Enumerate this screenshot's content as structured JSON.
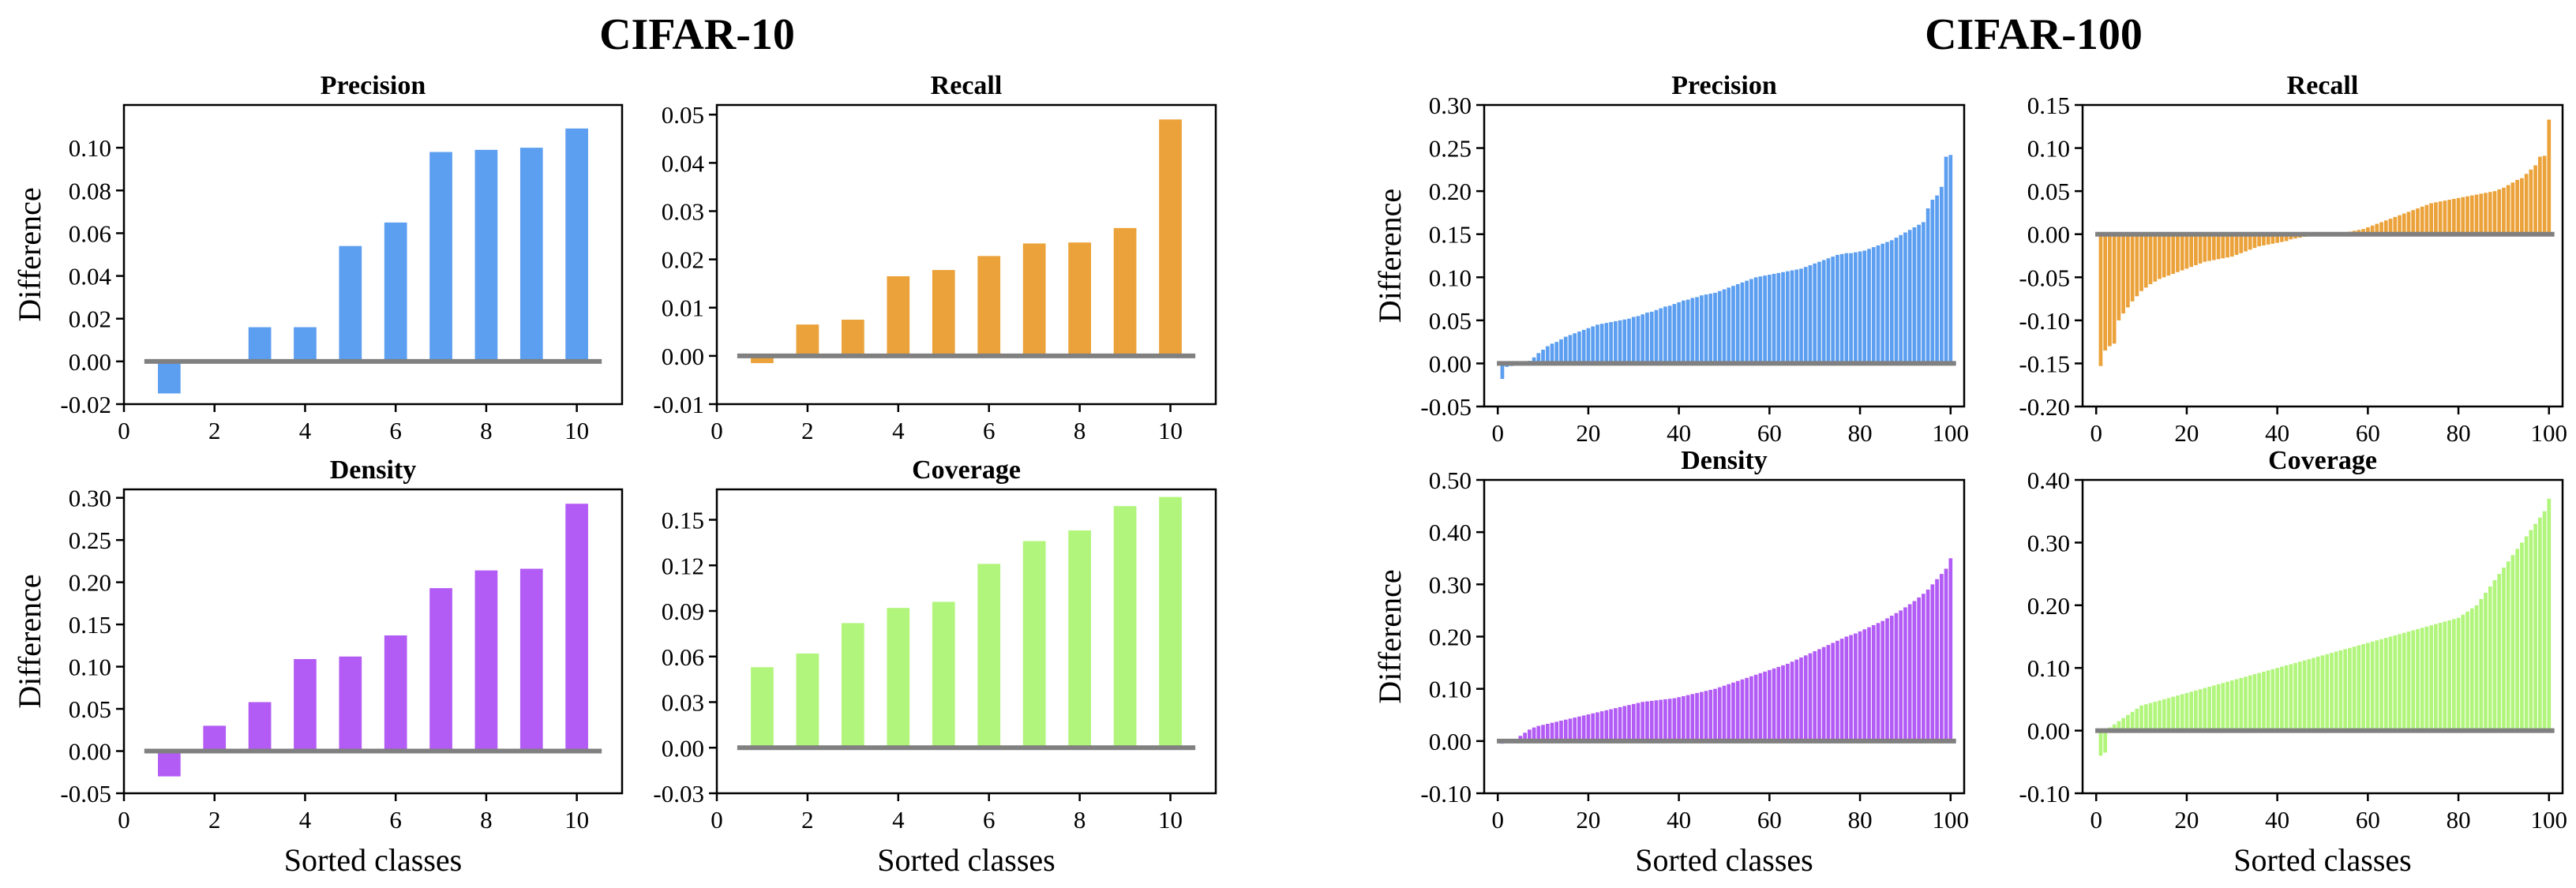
{
  "figure": {
    "group_titles": [
      "CIFAR-10",
      "CIFAR-100"
    ],
    "baseline_color": "#808080"
  },
  "chart_data": [
    {
      "type": "bar",
      "group": "CIFAR-10",
      "title": "Precision",
      "xlabel": "",
      "ylabel": "Difference",
      "color": "#5C9EF0",
      "xlim": [
        0,
        11
      ],
      "ylim": [
        -0.02,
        0.12
      ],
      "xticks": [
        "0",
        "2",
        "4",
        "6",
        "8",
        "10"
      ],
      "yticks": [
        "-0.02",
        "0.00",
        "0.02",
        "0.04",
        "0.06",
        "0.08",
        "0.10"
      ],
      "x": [
        1,
        2,
        3,
        4,
        5,
        6,
        7,
        8,
        9,
        10
      ],
      "values": [
        -0.015,
        0.001,
        0.016,
        0.016,
        0.054,
        0.065,
        0.098,
        0.099,
        0.1,
        0.109
      ]
    },
    {
      "type": "bar",
      "group": "CIFAR-10",
      "title": "Recall",
      "xlabel": "",
      "ylabel": "",
      "color": "#EBA23A",
      "xlim": [
        0,
        11
      ],
      "ylim": [
        -0.01,
        0.052
      ],
      "xticks": [
        "0",
        "2",
        "4",
        "6",
        "8",
        "10"
      ],
      "yticks": [
        "-0.01",
        "0.00",
        "0.01",
        "0.02",
        "0.03",
        "0.04",
        "0.05"
      ],
      "x": [
        1,
        2,
        3,
        4,
        5,
        6,
        7,
        8,
        9,
        10
      ],
      "values": [
        -0.0015,
        0.0065,
        0.0075,
        0.0165,
        0.0178,
        0.0207,
        0.0233,
        0.0235,
        0.0265,
        0.049
      ]
    },
    {
      "type": "bar",
      "group": "CIFAR-10",
      "title": "Density",
      "xlabel": "Sorted classes",
      "ylabel": "Difference",
      "color": "#B25CF5",
      "xlim": [
        0,
        11
      ],
      "ylim": [
        -0.05,
        0.31
      ],
      "xticks": [
        "0",
        "2",
        "4",
        "6",
        "8",
        "10"
      ],
      "yticks": [
        "-0.05",
        "0.00",
        "0.05",
        "0.10",
        "0.15",
        "0.20",
        "0.25",
        "0.30"
      ],
      "x": [
        1,
        2,
        3,
        4,
        5,
        6,
        7,
        8,
        9,
        10
      ],
      "values": [
        -0.03,
        0.03,
        0.058,
        0.109,
        0.112,
        0.137,
        0.193,
        0.214,
        0.216,
        0.293
      ]
    },
    {
      "type": "bar",
      "group": "CIFAR-10",
      "title": "Coverage",
      "xlabel": "Sorted classes",
      "ylabel": "",
      "color": "#B2F57C",
      "xlim": [
        0,
        11
      ],
      "ylim": [
        -0.03,
        0.17
      ],
      "xticks": [
        "0",
        "2",
        "4",
        "6",
        "8",
        "10"
      ],
      "yticks": [
        "-0.03",
        "0.00",
        "0.03",
        "0.06",
        "0.09",
        "0.12",
        "0.15"
      ],
      "x": [
        1,
        2,
        3,
        4,
        5,
        6,
        7,
        8,
        9,
        10
      ],
      "values": [
        0.053,
        0.062,
        0.082,
        0.092,
        0.096,
        0.121,
        0.136,
        0.143,
        0.159,
        0.165
      ]
    },
    {
      "type": "bar",
      "group": "CIFAR-100",
      "title": "Precision",
      "xlabel": "",
      "ylabel": "Difference",
      "color": "#5C9EF0",
      "xlim": [
        -3,
        103
      ],
      "ylim": [
        -0.05,
        0.3
      ],
      "xticks": [
        "0",
        "20",
        "40",
        "60",
        "80",
        "100"
      ],
      "yticks": [
        "-0.05",
        "0.00",
        "0.05",
        "0.10",
        "0.15",
        "0.20",
        "0.25",
        "0.30"
      ],
      "x_start": 1,
      "values": [
        -0.018,
        -0.004,
        -0.003,
        -0.002,
        0.0,
        0.001,
        0.003,
        0.007,
        0.012,
        0.016,
        0.02,
        0.023,
        0.025,
        0.028,
        0.031,
        0.033,
        0.035,
        0.037,
        0.039,
        0.041,
        0.043,
        0.045,
        0.046,
        0.047,
        0.048,
        0.049,
        0.05,
        0.051,
        0.052,
        0.054,
        0.055,
        0.057,
        0.059,
        0.06,
        0.062,
        0.064,
        0.066,
        0.067,
        0.069,
        0.071,
        0.073,
        0.074,
        0.076,
        0.077,
        0.079,
        0.08,
        0.081,
        0.082,
        0.084,
        0.086,
        0.088,
        0.09,
        0.092,
        0.094,
        0.096,
        0.098,
        0.1,
        0.101,
        0.102,
        0.103,
        0.104,
        0.105,
        0.106,
        0.107,
        0.108,
        0.109,
        0.11,
        0.112,
        0.114,
        0.116,
        0.118,
        0.12,
        0.122,
        0.124,
        0.126,
        0.127,
        0.128,
        0.128,
        0.129,
        0.13,
        0.131,
        0.133,
        0.135,
        0.137,
        0.139,
        0.141,
        0.143,
        0.146,
        0.149,
        0.152,
        0.155,
        0.158,
        0.161,
        0.164,
        0.18,
        0.19,
        0.195,
        0.205,
        0.24,
        0.242
      ]
    },
    {
      "type": "bar",
      "group": "CIFAR-100",
      "title": "Recall",
      "xlabel": "",
      "ylabel": "",
      "color": "#EBA23A",
      "xlim": [
        -3,
        103
      ],
      "ylim": [
        -0.2,
        0.15
      ],
      "xticks": [
        "0",
        "20",
        "40",
        "60",
        "80",
        "100"
      ],
      "yticks": [
        "-0.20",
        "-0.15",
        "-0.10",
        "-0.05",
        "0.00",
        "0.05",
        "0.10",
        "0.15"
      ],
      "x_start": 1,
      "values": [
        -0.153,
        -0.135,
        -0.13,
        -0.127,
        -0.1,
        -0.092,
        -0.085,
        -0.078,
        -0.072,
        -0.066,
        -0.062,
        -0.058,
        -0.055,
        -0.052,
        -0.05,
        -0.048,
        -0.046,
        -0.044,
        -0.042,
        -0.04,
        -0.038,
        -0.036,
        -0.034,
        -0.032,
        -0.031,
        -0.03,
        -0.029,
        -0.028,
        -0.027,
        -0.026,
        -0.024,
        -0.022,
        -0.02,
        -0.018,
        -0.016,
        -0.014,
        -0.013,
        -0.012,
        -0.011,
        -0.01,
        -0.009,
        -0.008,
        -0.006,
        -0.005,
        -0.004,
        -0.003,
        -0.002,
        -0.002,
        -0.001,
        -0.001,
        0.0,
        0.0,
        0.001,
        0.001,
        0.002,
        0.003,
        0.004,
        0.005,
        0.006,
        0.008,
        0.01,
        0.012,
        0.014,
        0.016,
        0.018,
        0.02,
        0.022,
        0.024,
        0.026,
        0.028,
        0.03,
        0.032,
        0.034,
        0.036,
        0.037,
        0.038,
        0.039,
        0.04,
        0.041,
        0.042,
        0.043,
        0.044,
        0.045,
        0.046,
        0.047,
        0.048,
        0.049,
        0.05,
        0.052,
        0.054,
        0.057,
        0.06,
        0.063,
        0.065,
        0.07,
        0.075,
        0.08,
        0.09,
        0.091,
        0.133
      ]
    },
    {
      "type": "bar",
      "group": "CIFAR-100",
      "title": "Density",
      "xlabel": "Sorted classes",
      "ylabel": "Difference",
      "color": "#B25CF5",
      "xlim": [
        -3,
        103
      ],
      "ylim": [
        -0.1,
        0.5
      ],
      "xticks": [
        "0",
        "20",
        "40",
        "60",
        "80",
        "100"
      ],
      "yticks": [
        "-0.10",
        "0.00",
        "0.10",
        "0.20",
        "0.30",
        "0.40",
        "0.50"
      ],
      "x_start": 1,
      "values": [
        -0.005,
        0.0,
        0.002,
        0.004,
        0.01,
        0.016,
        0.022,
        0.026,
        0.029,
        0.031,
        0.033,
        0.035,
        0.037,
        0.039,
        0.041,
        0.043,
        0.045,
        0.047,
        0.049,
        0.051,
        0.053,
        0.055,
        0.057,
        0.059,
        0.061,
        0.063,
        0.065,
        0.067,
        0.069,
        0.071,
        0.073,
        0.075,
        0.076,
        0.077,
        0.078,
        0.079,
        0.08,
        0.081,
        0.082,
        0.084,
        0.086,
        0.088,
        0.09,
        0.092,
        0.094,
        0.096,
        0.098,
        0.1,
        0.103,
        0.106,
        0.109,
        0.112,
        0.115,
        0.118,
        0.121,
        0.124,
        0.127,
        0.13,
        0.133,
        0.136,
        0.139,
        0.142,
        0.145,
        0.148,
        0.152,
        0.156,
        0.16,
        0.164,
        0.168,
        0.172,
        0.176,
        0.18,
        0.184,
        0.188,
        0.192,
        0.196,
        0.2,
        0.203,
        0.206,
        0.21,
        0.214,
        0.218,
        0.222,
        0.226,
        0.23,
        0.235,
        0.24,
        0.245,
        0.25,
        0.256,
        0.262,
        0.268,
        0.275,
        0.282,
        0.29,
        0.3,
        0.31,
        0.32,
        0.33,
        0.35
      ]
    },
    {
      "type": "bar",
      "group": "CIFAR-100",
      "title": "Coverage",
      "xlabel": "Sorted classes",
      "ylabel": "",
      "color": "#B2F57C",
      "xlim": [
        -3,
        103
      ],
      "ylim": [
        -0.1,
        0.4
      ],
      "xticks": [
        "0",
        "20",
        "40",
        "60",
        "80",
        "100"
      ],
      "yticks": [
        "-0.10",
        "0.00",
        "0.10",
        "0.20",
        "0.30",
        "0.40"
      ],
      "x_start": 1,
      "values": [
        -0.04,
        -0.035,
        0.005,
        0.01,
        0.015,
        0.02,
        0.025,
        0.03,
        0.035,
        0.04,
        0.042,
        0.044,
        0.046,
        0.048,
        0.05,
        0.052,
        0.054,
        0.056,
        0.058,
        0.06,
        0.062,
        0.064,
        0.066,
        0.068,
        0.07,
        0.072,
        0.074,
        0.076,
        0.078,
        0.08,
        0.082,
        0.084,
        0.086,
        0.088,
        0.09,
        0.092,
        0.094,
        0.096,
        0.098,
        0.1,
        0.102,
        0.104,
        0.106,
        0.108,
        0.11,
        0.112,
        0.114,
        0.116,
        0.118,
        0.12,
        0.122,
        0.124,
        0.126,
        0.128,
        0.13,
        0.132,
        0.134,
        0.136,
        0.138,
        0.14,
        0.142,
        0.144,
        0.146,
        0.148,
        0.15,
        0.152,
        0.154,
        0.156,
        0.158,
        0.16,
        0.162,
        0.164,
        0.166,
        0.168,
        0.17,
        0.172,
        0.174,
        0.176,
        0.178,
        0.18,
        0.185,
        0.19,
        0.195,
        0.2,
        0.21,
        0.22,
        0.23,
        0.24,
        0.25,
        0.26,
        0.27,
        0.28,
        0.29,
        0.3,
        0.31,
        0.32,
        0.33,
        0.34,
        0.35,
        0.37
      ]
    }
  ]
}
